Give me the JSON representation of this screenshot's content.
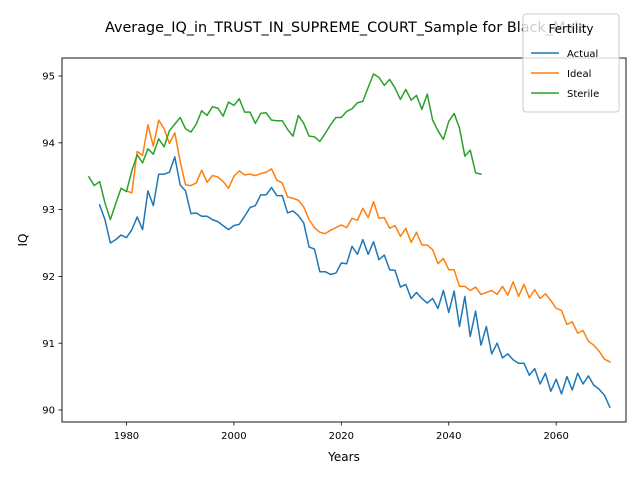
{
  "chart_data": {
    "type": "line",
    "title": "Average_IQ_in_TRUST_IN_SUPREME_COURT_Sample for Black_Male",
    "xlabel": "Years",
    "ylabel": "IQ",
    "xlim": [
      1968,
      2073
    ],
    "ylim": [
      89.82,
      95.27
    ],
    "xticks": [
      1980,
      2000,
      2020,
      2040,
      2060
    ],
    "yticks": [
      90,
      91,
      92,
      93,
      94,
      95
    ],
    "grid": false,
    "legend": {
      "title": "Fertility",
      "placement": "top-right"
    },
    "series": [
      {
        "name": "Actual",
        "color": "#1f77b4",
        "points": [
          [
            1975,
            93.07
          ],
          [
            1976,
            92.85
          ],
          [
            1977,
            92.5
          ],
          [
            1978,
            92.55
          ],
          [
            1979,
            92.62
          ],
          [
            1980,
            92.58
          ],
          [
            1981,
            92.7
          ],
          [
            1982,
            92.89
          ],
          [
            1983,
            92.7
          ],
          [
            1984,
            93.28
          ],
          [
            1985,
            93.06
          ],
          [
            1986,
            93.53
          ],
          [
            1987,
            93.53
          ],
          [
            1988,
            93.56
          ],
          [
            1989,
            93.79
          ],
          [
            1990,
            93.37
          ],
          [
            1991,
            93.28
          ],
          [
            1992,
            92.94
          ],
          [
            1993,
            92.95
          ],
          [
            1994,
            92.9
          ],
          [
            1995,
            92.9
          ],
          [
            1996,
            92.85
          ],
          [
            1997,
            92.82
          ],
          [
            1998,
            92.76
          ],
          [
            1999,
            92.7
          ],
          [
            2000,
            92.76
          ],
          [
            2001,
            92.78
          ],
          [
            2002,
            92.9
          ],
          [
            2003,
            93.03
          ],
          [
            2004,
            93.06
          ],
          [
            2005,
            93.22
          ],
          [
            2006,
            93.22
          ],
          [
            2007,
            93.33
          ],
          [
            2008,
            93.21
          ],
          [
            2009,
            93.21
          ],
          [
            2010,
            92.95
          ],
          [
            2011,
            92.98
          ],
          [
            2012,
            92.91
          ],
          [
            2013,
            92.8
          ],
          [
            2014,
            92.44
          ],
          [
            2015,
            92.41
          ],
          [
            2016,
            92.07
          ],
          [
            2017,
            92.07
          ],
          [
            2018,
            92.03
          ],
          [
            2019,
            92.05
          ],
          [
            2020,
            92.2
          ],
          [
            2021,
            92.19
          ],
          [
            2022,
            92.45
          ],
          [
            2023,
            92.33
          ],
          [
            2024,
            92.55
          ],
          [
            2025,
            92.33
          ],
          [
            2026,
            92.52
          ],
          [
            2027,
            92.25
          ],
          [
            2028,
            92.32
          ],
          [
            2029,
            92.1
          ],
          [
            2030,
            92.09
          ],
          [
            2031,
            91.84
          ],
          [
            2032,
            91.88
          ],
          [
            2033,
            91.67
          ],
          [
            2034,
            91.76
          ],
          [
            2035,
            91.67
          ],
          [
            2036,
            91.6
          ],
          [
            2037,
            91.67
          ],
          [
            2038,
            91.52
          ],
          [
            2039,
            91.79
          ],
          [
            2040,
            91.46
          ],
          [
            2041,
            91.78
          ],
          [
            2042,
            91.25
          ],
          [
            2043,
            91.7
          ],
          [
            2044,
            91.1
          ],
          [
            2045,
            91.48
          ],
          [
            2046,
            90.97
          ],
          [
            2047,
            91.25
          ],
          [
            2048,
            90.84
          ],
          [
            2049,
            91.0
          ],
          [
            2050,
            90.78
          ],
          [
            2051,
            90.84
          ],
          [
            2052,
            90.75
          ],
          [
            2053,
            90.7
          ],
          [
            2054,
            90.7
          ],
          [
            2055,
            90.52
          ],
          [
            2056,
            90.62
          ],
          [
            2057,
            90.39
          ],
          [
            2058,
            90.55
          ],
          [
            2059,
            90.28
          ],
          [
            2060,
            90.46
          ],
          [
            2061,
            90.24
          ],
          [
            2062,
            90.5
          ],
          [
            2063,
            90.3
          ],
          [
            2064,
            90.55
          ],
          [
            2065,
            90.39
          ],
          [
            2066,
            90.51
          ],
          [
            2067,
            90.37
          ],
          [
            2068,
            90.31
          ],
          [
            2069,
            90.22
          ],
          [
            2070,
            90.04
          ]
        ]
      },
      {
        "name": "Ideal",
        "color": "#ff7f0e",
        "points": [
          [
            1980,
            93.28
          ],
          [
            1981,
            93.25
          ],
          [
            1982,
            93.87
          ],
          [
            1983,
            93.81
          ],
          [
            1984,
            94.27
          ],
          [
            1985,
            93.95
          ],
          [
            1986,
            94.34
          ],
          [
            1987,
            94.21
          ],
          [
            1988,
            93.99
          ],
          [
            1989,
            94.15
          ],
          [
            1990,
            93.72
          ],
          [
            1991,
            93.37
          ],
          [
            1992,
            93.36
          ],
          [
            1993,
            93.4
          ],
          [
            1994,
            93.59
          ],
          [
            1995,
            93.41
          ],
          [
            1996,
            93.51
          ],
          [
            1997,
            93.49
          ],
          [
            1998,
            93.42
          ],
          [
            1999,
            93.32
          ],
          [
            2000,
            93.5
          ],
          [
            2001,
            93.58
          ],
          [
            2002,
            93.52
          ],
          [
            2003,
            93.53
          ],
          [
            2004,
            93.51
          ],
          [
            2005,
            93.54
          ],
          [
            2006,
            93.56
          ],
          [
            2007,
            93.61
          ],
          [
            2008,
            93.44
          ],
          [
            2009,
            93.4
          ],
          [
            2010,
            93.19
          ],
          [
            2011,
            93.17
          ],
          [
            2012,
            93.14
          ],
          [
            2013,
            93.04
          ],
          [
            2014,
            92.85
          ],
          [
            2015,
            92.73
          ],
          [
            2016,
            92.66
          ],
          [
            2017,
            92.64
          ],
          [
            2018,
            92.69
          ],
          [
            2019,
            92.73
          ],
          [
            2020,
            92.77
          ],
          [
            2021,
            92.73
          ],
          [
            2022,
            92.87
          ],
          [
            2023,
            92.84
          ],
          [
            2024,
            93.02
          ],
          [
            2025,
            92.88
          ],
          [
            2026,
            93.12
          ],
          [
            2027,
            92.87
          ],
          [
            2028,
            92.88
          ],
          [
            2029,
            92.72
          ],
          [
            2030,
            92.76
          ],
          [
            2031,
            92.6
          ],
          [
            2032,
            92.72
          ],
          [
            2033,
            92.51
          ],
          [
            2034,
            92.66
          ],
          [
            2035,
            92.47
          ],
          [
            2036,
            92.47
          ],
          [
            2037,
            92.4
          ],
          [
            2038,
            92.19
          ],
          [
            2039,
            92.27
          ],
          [
            2040,
            92.1
          ],
          [
            2041,
            92.1
          ],
          [
            2042,
            91.85
          ],
          [
            2043,
            91.85
          ],
          [
            2044,
            91.79
          ],
          [
            2045,
            91.84
          ],
          [
            2046,
            91.73
          ],
          [
            2047,
            91.76
          ],
          [
            2048,
            91.79
          ],
          [
            2049,
            91.73
          ],
          [
            2050,
            91.85
          ],
          [
            2051,
            91.72
          ],
          [
            2052,
            91.92
          ],
          [
            2053,
            91.7
          ],
          [
            2054,
            91.88
          ],
          [
            2055,
            91.68
          ],
          [
            2056,
            91.8
          ],
          [
            2057,
            91.67
          ],
          [
            2058,
            91.74
          ],
          [
            2059,
            91.64
          ],
          [
            2060,
            91.52
          ],
          [
            2061,
            91.49
          ],
          [
            2062,
            91.28
          ],
          [
            2063,
            91.32
          ],
          [
            2064,
            91.15
          ],
          [
            2065,
            91.19
          ],
          [
            2066,
            91.03
          ],
          [
            2067,
            90.97
          ],
          [
            2068,
            90.88
          ],
          [
            2069,
            90.76
          ],
          [
            2070,
            90.72
          ]
        ]
      },
      {
        "name": "Sterile",
        "color": "#2ca02c",
        "points": [
          [
            1973,
            93.49
          ],
          [
            1974,
            93.36
          ],
          [
            1975,
            93.42
          ],
          [
            1976,
            93.1
          ],
          [
            1977,
            92.85
          ],
          [
            1978,
            93.09
          ],
          [
            1979,
            93.32
          ],
          [
            1980,
            93.27
          ],
          [
            1981,
            93.58
          ],
          [
            1982,
            93.82
          ],
          [
            1983,
            93.7
          ],
          [
            1984,
            93.91
          ],
          [
            1985,
            93.83
          ],
          [
            1986,
            94.06
          ],
          [
            1987,
            93.94
          ],
          [
            1988,
            94.18
          ],
          [
            1989,
            94.28
          ],
          [
            1990,
            94.38
          ],
          [
            1991,
            94.21
          ],
          [
            1992,
            94.16
          ],
          [
            1993,
            94.28
          ],
          [
            1994,
            94.48
          ],
          [
            1995,
            94.41
          ],
          [
            1996,
            94.54
          ],
          [
            1997,
            94.52
          ],
          [
            1998,
            94.4
          ],
          [
            1999,
            94.61
          ],
          [
            2000,
            94.56
          ],
          [
            2001,
            94.66
          ],
          [
            2002,
            94.46
          ],
          [
            2003,
            94.46
          ],
          [
            2004,
            94.29
          ],
          [
            2005,
            94.44
          ],
          [
            2006,
            94.45
          ],
          [
            2007,
            94.34
          ],
          [
            2008,
            94.33
          ],
          [
            2009,
            94.33
          ],
          [
            2010,
            94.2
          ],
          [
            2011,
            94.1
          ],
          [
            2012,
            94.41
          ],
          [
            2013,
            94.29
          ],
          [
            2014,
            94.1
          ],
          [
            2015,
            94.09
          ],
          [
            2016,
            94.02
          ],
          [
            2017,
            94.14
          ],
          [
            2018,
            94.27
          ],
          [
            2019,
            94.38
          ],
          [
            2020,
            94.38
          ],
          [
            2021,
            94.47
          ],
          [
            2022,
            94.51
          ],
          [
            2023,
            94.6
          ],
          [
            2024,
            94.62
          ],
          [
            2025,
            94.83
          ],
          [
            2026,
            95.03
          ],
          [
            2027,
            94.98
          ],
          [
            2028,
            94.86
          ],
          [
            2029,
            94.95
          ],
          [
            2030,
            94.82
          ],
          [
            2031,
            94.65
          ],
          [
            2032,
            94.8
          ],
          [
            2033,
            94.64
          ],
          [
            2034,
            94.71
          ],
          [
            2035,
            94.5
          ],
          [
            2036,
            94.73
          ],
          [
            2037,
            94.34
          ],
          [
            2038,
            94.18
          ],
          [
            2039,
            94.05
          ],
          [
            2040,
            94.32
          ],
          [
            2041,
            94.44
          ],
          [
            2042,
            94.22
          ],
          [
            2043,
            93.8
          ],
          [
            2044,
            93.89
          ],
          [
            2045,
            93.55
          ],
          [
            2046,
            93.53
          ]
        ]
      }
    ]
  }
}
